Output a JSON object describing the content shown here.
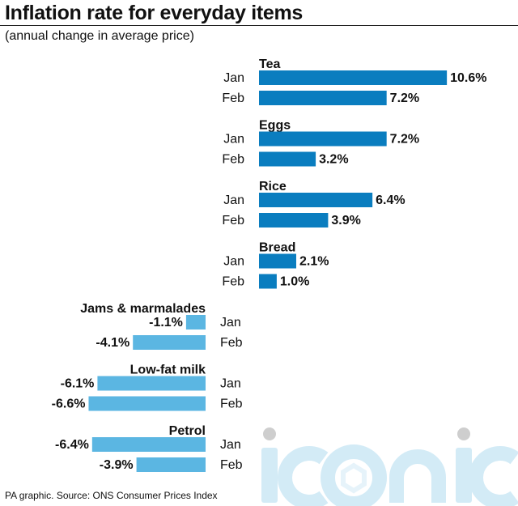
{
  "header": {
    "title": "Inflation rate for everyday items",
    "subtitle": "(annual change in average price)"
  },
  "footer": {
    "source": "PA graphic. Source: ONS Consumer Prices Index"
  },
  "watermark": {
    "text": "iconic"
  },
  "colors": {
    "positive_bar": "#0a7dbf",
    "negative_bar": "#5bb6e2",
    "watermark": "#cfe9f6"
  },
  "chart_data": {
    "type": "bar",
    "orientation": "horizontal",
    "unit": "%",
    "periods": [
      "Jan",
      "Feb"
    ],
    "categories": [
      {
        "name": "Tea",
        "values": [
          {
            "period": "Jan",
            "value": 10.6,
            "label": "10.6%"
          },
          {
            "period": "Feb",
            "value": 7.2,
            "label": "7.2%"
          }
        ]
      },
      {
        "name": "Eggs",
        "values": [
          {
            "period": "Jan",
            "value": 7.2,
            "label": "7.2%"
          },
          {
            "period": "Feb",
            "value": 3.2,
            "label": "3.2%"
          }
        ]
      },
      {
        "name": "Rice",
        "values": [
          {
            "period": "Jan",
            "value": 6.4,
            "label": "6.4%"
          },
          {
            "period": "Feb",
            "value": 3.9,
            "label": "3.9%"
          }
        ]
      },
      {
        "name": "Bread",
        "values": [
          {
            "period": "Jan",
            "value": 2.1,
            "label": "2.1%"
          },
          {
            "period": "Feb",
            "value": 1.0,
            "label": "1.0%"
          }
        ]
      },
      {
        "name": "Jams & marmalades",
        "values": [
          {
            "period": "Jan",
            "value": -1.1,
            "label": "-1.1%"
          },
          {
            "period": "Feb",
            "value": -4.1,
            "label": "-4.1%"
          }
        ]
      },
      {
        "name": "Low-fat milk",
        "values": [
          {
            "period": "Jan",
            "value": -6.1,
            "label": "-6.1%"
          },
          {
            "period": "Feb",
            "value": -6.6,
            "label": "-6.6%"
          }
        ]
      },
      {
        "name": "Petrol",
        "values": [
          {
            "period": "Jan",
            "value": -6.4,
            "label": "-6.4%"
          },
          {
            "period": "Feb",
            "value": -3.9,
            "label": "-3.9%"
          }
        ]
      }
    ],
    "grid": false,
    "legend": "none"
  }
}
